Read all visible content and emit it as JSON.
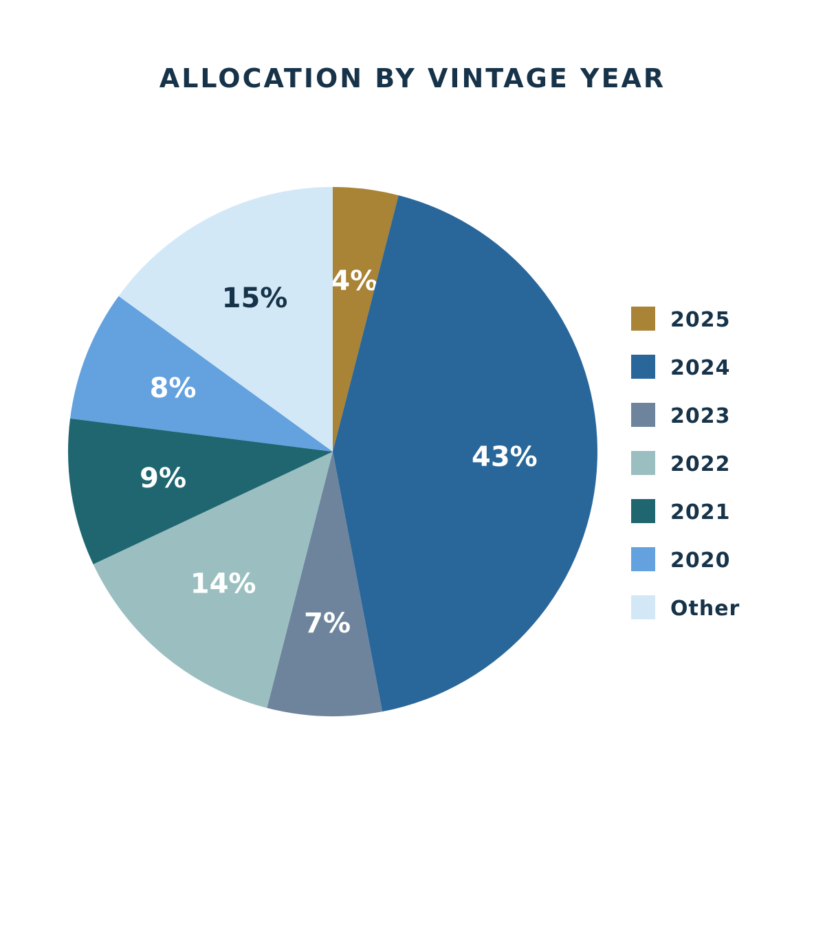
{
  "chart_data": {
    "type": "pie",
    "title": "ALLOCATION BY VINTAGE YEAR",
    "start": "12 o'clock",
    "direction": "clockwise",
    "slices": [
      {
        "label": "2025",
        "value": 4,
        "display": "4%",
        "color": "#A98336",
        "text_color": "#ffffff"
      },
      {
        "label": "2024",
        "value": 43,
        "display": "43%",
        "color": "#29679A",
        "text_color": "#ffffff"
      },
      {
        "label": "2023",
        "value": 7,
        "display": "7%",
        "color": "#6E849D",
        "text_color": "#ffffff"
      },
      {
        "label": "2022",
        "value": 14,
        "display": "14%",
        "color": "#9BBFC0",
        "text_color": "#ffffff"
      },
      {
        "label": "2021",
        "value": 9,
        "display": "9%",
        "color": "#1F6670",
        "text_color": "#ffffff"
      },
      {
        "label": "2020",
        "value": 8,
        "display": "8%",
        "color": "#63A1DF",
        "text_color": "#ffffff"
      },
      {
        "label": "Other",
        "value": 15,
        "display": "15%",
        "color": "#D3E8F7",
        "text_color": "#173349"
      }
    ],
    "legend_position": "right"
  }
}
